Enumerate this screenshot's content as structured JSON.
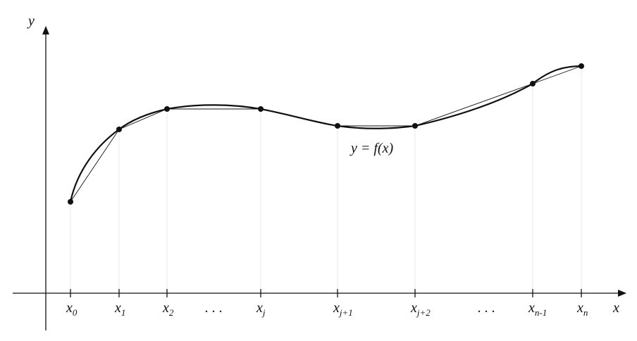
{
  "axes": {
    "x_label": "x",
    "y_label": "y"
  },
  "curve_label": "y = f(x)",
  "ticks": [
    {
      "base": "x",
      "sub": "0"
    },
    {
      "base": "x",
      "sub": "1"
    },
    {
      "base": "x",
      "sub": "2"
    },
    {
      "text": ". . ."
    },
    {
      "base": "x",
      "sub": "j"
    },
    {
      "base": "x",
      "sub": "j+1"
    },
    {
      "base": "x",
      "sub": "j+2"
    },
    {
      "text": ". . ."
    },
    {
      "base": "x",
      "sub": "n-1"
    },
    {
      "base": "x",
      "sub": "n"
    }
  ]
}
